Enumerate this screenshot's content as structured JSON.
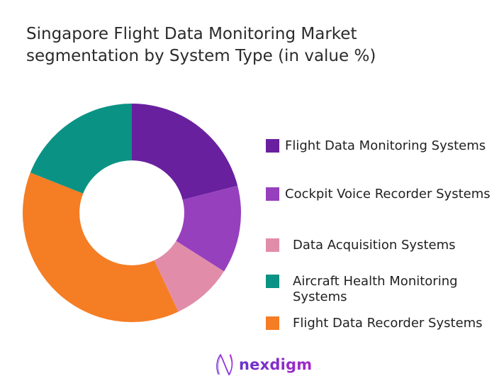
{
  "title": {
    "line1": "Singapore Flight Data Monitoring Market",
    "line2": "segmentation by System Type (in value %)",
    "color": "#2b2b2b"
  },
  "chart_data": {
    "type": "pie",
    "subtype": "donut",
    "title": "Singapore Flight Data Monitoring Market segmentation by System Type (in value %)",
    "unit": "value %",
    "hole_ratio": 0.48,
    "start_angle_deg": 0,
    "direction": "clockwise",
    "segments": [
      {
        "label": "Flight Data Monitoring Systems",
        "value": 21,
        "color": "#69209e"
      },
      {
        "label": "Cockpit Voice Recorder Systems",
        "value": 13,
        "color": "#9640be"
      },
      {
        "label": "Data Acquisition Systems",
        "value": 9,
        "color": "#e18da9"
      },
      {
        "label": "Flight Data Recorder Systems",
        "value": 38,
        "color": "#f57d24"
      },
      {
        "label": "Aircraft Health Monitoring Systems",
        "value": 19,
        "color": "#0a9384"
      }
    ],
    "legend_position": "right",
    "legend_order": [
      0,
      1,
      2,
      4,
      3
    ]
  },
  "footer": {
    "brand": "nexdigm",
    "brand_color": "#8128bc"
  }
}
